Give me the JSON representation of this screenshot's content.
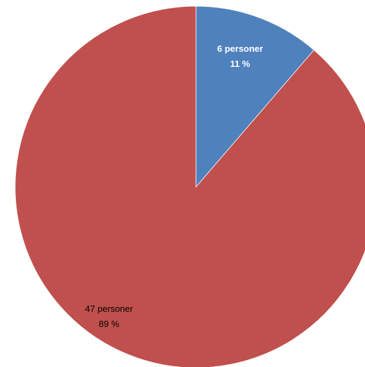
{
  "chart_data": {
    "type": "pie",
    "title": "",
    "categories": [
      "6 personer",
      "47 personer"
    ],
    "values": [
      6,
      47
    ],
    "slices": [
      {
        "count_label": "6 personer",
        "percent_label": "11 %",
        "value": 6,
        "percent": 11,
        "color": "#4F81BD",
        "label_color": "#ffffff",
        "label_bold": true
      },
      {
        "count_label": "47 personer",
        "percent_label": "89 %",
        "value": 47,
        "percent": 89,
        "color": "#C0504D",
        "label_color": "#000000",
        "label_bold": false
      }
    ],
    "start_angle": "12 o'clock",
    "direction": "clockwise",
    "legend": "none",
    "grid": false
  }
}
